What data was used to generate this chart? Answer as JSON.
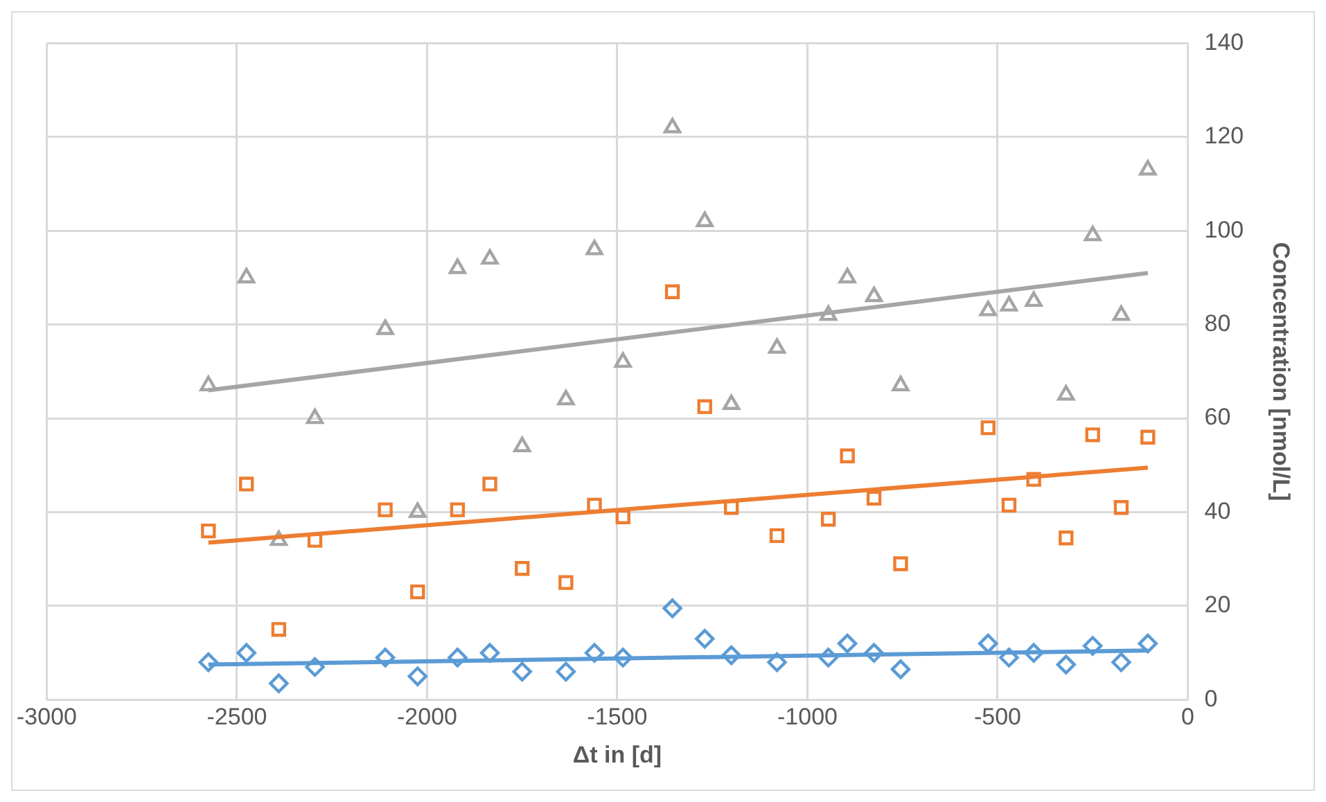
{
  "chart_data": {
    "type": "scatter",
    "xlabel": "Δt in [d]",
    "ylabel": "Concentration [nmol/L]",
    "x": [
      -2575,
      -2475,
      -2390,
      -2295,
      -2110,
      -2025,
      -1920,
      -1835,
      -1750,
      -1635,
      -1560,
      -1485,
      -1355,
      -1270,
      -1200,
      -1080,
      -945,
      -895,
      -825,
      -755,
      -525,
      -470,
      -405,
      -320,
      -250,
      -175,
      -105
    ],
    "xlim": [
      -3000,
      0
    ],
    "xticks": [
      -3000,
      -2500,
      -2000,
      -1500,
      -1000,
      -500,
      0
    ],
    "ylim": [
      0,
      140
    ],
    "yticks": [
      0,
      20,
      40,
      60,
      80,
      100,
      120,
      140
    ],
    "grid": true,
    "legend": false,
    "series": [
      {
        "color": "#a5a5a5",
        "marker": "triangle",
        "values": [
          67,
          90,
          34,
          60,
          79,
          40,
          92,
          94,
          54,
          64,
          96,
          72,
          122,
          102,
          63,
          75,
          82,
          90,
          86,
          67,
          83,
          84,
          85,
          65,
          99,
          82,
          113
        ]
      },
      {
        "color": "#ed7d31",
        "marker": "square",
        "values": [
          36,
          46,
          15,
          34,
          40.5,
          23,
          40.5,
          46,
          28,
          25,
          41.5,
          39,
          87,
          62.5,
          41,
          35,
          38.5,
          52,
          43,
          29,
          58,
          41.5,
          47,
          34.5,
          56.5,
          41,
          56
        ]
      },
      {
        "color": "#5b9bd5",
        "marker": "diamond",
        "values": [
          8,
          10,
          3.5,
          7,
          9,
          5,
          9,
          10,
          6,
          6,
          10,
          9,
          19.5,
          13,
          9.5,
          8,
          9,
          12,
          10,
          6.5,
          12,
          9,
          10,
          7.5,
          11.5,
          8,
          12
        ]
      },
      {
        "type": "line",
        "color": "#a5a5a5",
        "marker": "none",
        "values": [
          66,
          null,
          null,
          null,
          null,
          null,
          null,
          null,
          null,
          null,
          null,
          null,
          null,
          null,
          null,
          null,
          null,
          null,
          null,
          null,
          null,
          null,
          null,
          null,
          null,
          null,
          91
        ]
      },
      {
        "type": "line",
        "color": "#ed7d31",
        "marker": "none",
        "values": [
          33.5,
          null,
          null,
          null,
          null,
          null,
          null,
          null,
          null,
          null,
          null,
          null,
          null,
          null,
          null,
          null,
          null,
          null,
          null,
          null,
          null,
          null,
          null,
          null,
          null,
          null,
          49.5
        ]
      },
      {
        "type": "line",
        "color": "#5b9bd5",
        "marker": "none",
        "values": [
          7.5,
          null,
          null,
          null,
          null,
          null,
          null,
          null,
          null,
          null,
          null,
          null,
          null,
          null,
          null,
          null,
          null,
          null,
          null,
          null,
          null,
          null,
          null,
          null,
          null,
          null,
          10.5
        ]
      }
    ]
  }
}
